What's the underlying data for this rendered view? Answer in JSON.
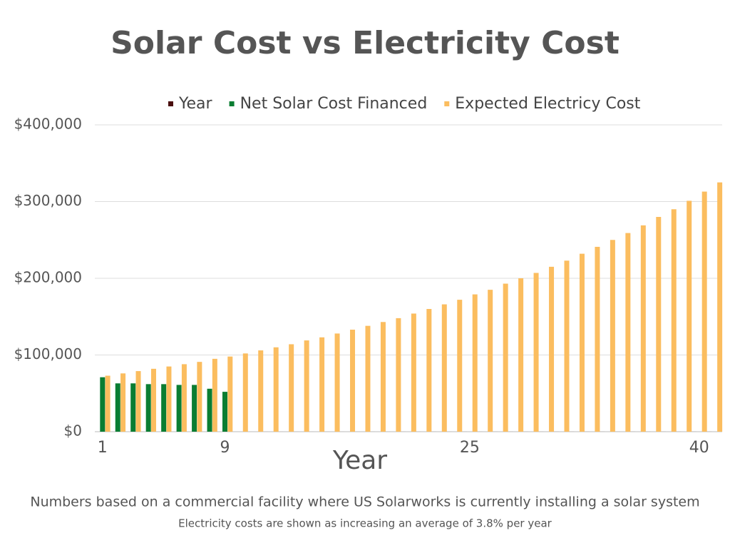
{
  "chart_data": {
    "type": "bar",
    "title": "Solar Cost vs Electricity Cost",
    "xlabel": "Year",
    "notes": [
      "Numbers based on a commercial facility where US Solarworks is currently installing a solar system",
      "Electricity costs are shown as increasing an average of 3.8% per year"
    ],
    "categories": [
      1,
      null,
      null,
      null,
      null,
      null,
      null,
      null,
      9,
      null,
      null,
      null,
      null,
      null,
      null,
      null,
      null,
      null,
      null,
      null,
      null,
      null,
      null,
      null,
      25,
      null,
      null,
      null,
      null,
      null,
      null,
      null,
      null,
      null,
      null,
      null,
      null,
      null,
      null,
      40,
      null
    ],
    "series": [
      {
        "name": "Year",
        "color": "#4a0f0f",
        "values": [
          1,
          2,
          3,
          4,
          5,
          6,
          7,
          8,
          9,
          10,
          11,
          12,
          13,
          14,
          15,
          16,
          17,
          18,
          19,
          20,
          21,
          22,
          23,
          24,
          25,
          26,
          27,
          28,
          29,
          30,
          31,
          32,
          33,
          34,
          35,
          36,
          37,
          38,
          39,
          40,
          41
        ]
      },
      {
        "name": "Net Solar Cost Financed",
        "color": "#0a7d32",
        "values": [
          71000,
          63000,
          63000,
          62000,
          62000,
          61000,
          61000,
          56000,
          52000,
          null,
          null,
          null,
          null,
          null,
          null,
          null,
          null,
          null,
          null,
          null,
          null,
          null,
          null,
          null,
          null,
          null,
          null,
          null,
          null,
          null,
          null,
          null,
          null,
          null,
          null,
          null,
          null,
          null,
          null,
          null,
          null
        ]
      },
      {
        "name": "Expected Electricy Cost",
        "color": "#fbbd5f",
        "values": [
          73000,
          76000,
          79000,
          82000,
          85000,
          88000,
          91000,
          95000,
          98000,
          102000,
          106000,
          110000,
          114000,
          119000,
          123000,
          128000,
          133000,
          138000,
          143000,
          148000,
          154000,
          160000,
          166000,
          172000,
          179000,
          185000,
          193000,
          200000,
          207000,
          215000,
          223000,
          232000,
          241000,
          250000,
          259000,
          269000,
          280000,
          290000,
          301000,
          313000,
          325000
        ]
      }
    ],
    "ylim": [
      0,
      400000
    ],
    "yticks": [
      {
        "value": 0,
        "label": "$0"
      },
      {
        "value": 100000,
        "label": "$100,000"
      },
      {
        "value": 200000,
        "label": "$200,000"
      },
      {
        "value": 300000,
        "label": "$300,000"
      },
      {
        "value": 400000,
        "label": "$400,000"
      }
    ],
    "grid": true,
    "legend": "top"
  }
}
